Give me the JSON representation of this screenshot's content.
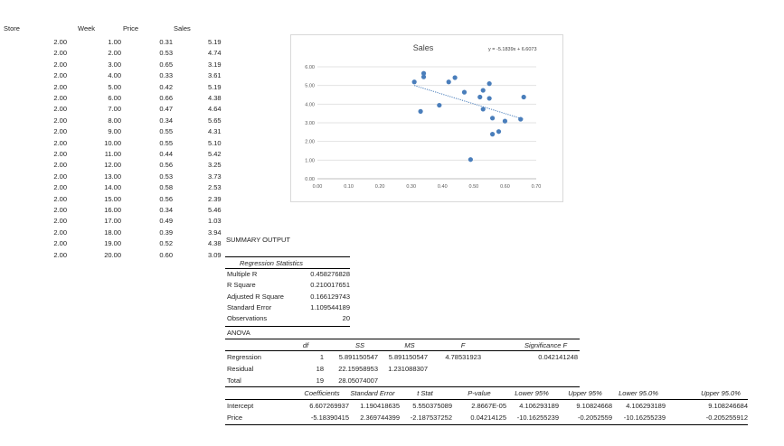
{
  "sheet": {
    "headers": [
      "Store",
      "Week",
      "Price",
      "Sales"
    ],
    "rows": [
      [
        "2.00",
        "1.00",
        "0.31",
        "5.19"
      ],
      [
        "2.00",
        "2.00",
        "0.53",
        "4.74"
      ],
      [
        "2.00",
        "3.00",
        "0.65",
        "3.19"
      ],
      [
        "2.00",
        "4.00",
        "0.33",
        "3.61"
      ],
      [
        "2.00",
        "5.00",
        "0.42",
        "5.19"
      ],
      [
        "2.00",
        "6.00",
        "0.66",
        "4.38"
      ],
      [
        "2.00",
        "7.00",
        "0.47",
        "4.64"
      ],
      [
        "2.00",
        "8.00",
        "0.34",
        "5.65"
      ],
      [
        "2.00",
        "9.00",
        "0.55",
        "4.31"
      ],
      [
        "2.00",
        "10.00",
        "0.55",
        "5.10"
      ],
      [
        "2.00",
        "11.00",
        "0.44",
        "5.42"
      ],
      [
        "2.00",
        "12.00",
        "0.56",
        "3.25"
      ],
      [
        "2.00",
        "13.00",
        "0.53",
        "3.73"
      ],
      [
        "2.00",
        "14.00",
        "0.58",
        "2.53"
      ],
      [
        "2.00",
        "15.00",
        "0.56",
        "2.39"
      ],
      [
        "2.00",
        "16.00",
        "0.34",
        "5.46"
      ],
      [
        "2.00",
        "17.00",
        "0.49",
        "1.03"
      ],
      [
        "2.00",
        "18.00",
        "0.39",
        "3.94"
      ],
      [
        "2.00",
        "19.00",
        "0.52",
        "4.38"
      ],
      [
        "2.00",
        "20.00",
        "0.60",
        "3.09"
      ]
    ]
  },
  "summary": {
    "title": "SUMMARY OUTPUT",
    "regression_heading": "Regression Statistics",
    "stats": [
      [
        "Multiple R",
        "0.458276828"
      ],
      [
        "R Square",
        "0.210017651"
      ],
      [
        "Adjusted R Square",
        "0.166129743"
      ],
      [
        "Standard Error",
        "1.109544189"
      ],
      [
        "Observations",
        "20"
      ]
    ],
    "anova_title": "ANOVA",
    "anova_headers": [
      "df",
      "SS",
      "MS",
      "F",
      "Significance F"
    ],
    "anova_rows": [
      [
        "Regression",
        "1",
        "5.891150547",
        "5.891150547",
        "4.78531923",
        "0.042141248"
      ],
      [
        "Residual",
        "18",
        "22.15958953",
        "1.231088307",
        "",
        ""
      ],
      [
        "Total",
        "19",
        "28.05074007",
        "",
        "",
        ""
      ]
    ],
    "coef_headers": [
      "Coefficients",
      "Standard Error",
      "t Stat",
      "P-value",
      "Lower 95%",
      "Upper 95%",
      "Lower 95.0%",
      "Upper 95.0%"
    ],
    "coef_rows": [
      [
        "Intercept",
        "6.607269937",
        "1.190418635",
        "5.550375089",
        "2.8667E-05",
        "4.106293189",
        "9.10824668",
        "4.106293189",
        "9.108246684"
      ],
      [
        "Price",
        "-5.18390415",
        "2.369744399",
        "-2.187537252",
        "0.04214125",
        "-10.16255239",
        "-0.2052559",
        "-10.16255239",
        "-0.205255912"
      ]
    ]
  },
  "chart_data": {
    "type": "scatter",
    "title": "Sales",
    "equation": "y = -5.1839x + 6.6073",
    "trendline": {
      "slope": -5.1839,
      "intercept": 6.6073,
      "x_range": [
        0.31,
        0.66
      ]
    },
    "xlim": [
      0,
      0.7
    ],
    "ylim": [
      0,
      6
    ],
    "x_ticks": [
      "0.00",
      "0.10",
      "0.20",
      "0.30",
      "0.40",
      "0.50",
      "0.60",
      "0.70"
    ],
    "y_ticks": [
      "0.00",
      "1.00",
      "2.00",
      "3.00",
      "4.00",
      "5.00",
      "6.00"
    ],
    "grid": true,
    "point_color": "#4a7ebb",
    "points": [
      [
        0.31,
        5.19
      ],
      [
        0.53,
        4.74
      ],
      [
        0.65,
        3.19
      ],
      [
        0.33,
        3.61
      ],
      [
        0.42,
        5.19
      ],
      [
        0.66,
        4.38
      ],
      [
        0.47,
        4.64
      ],
      [
        0.34,
        5.65
      ],
      [
        0.55,
        4.31
      ],
      [
        0.55,
        5.1
      ],
      [
        0.44,
        5.42
      ],
      [
        0.56,
        3.25
      ],
      [
        0.53,
        3.73
      ],
      [
        0.58,
        2.53
      ],
      [
        0.56,
        2.39
      ],
      [
        0.34,
        5.46
      ],
      [
        0.49,
        1.03
      ],
      [
        0.39,
        3.94
      ],
      [
        0.52,
        4.38
      ],
      [
        0.6,
        3.09
      ]
    ]
  }
}
